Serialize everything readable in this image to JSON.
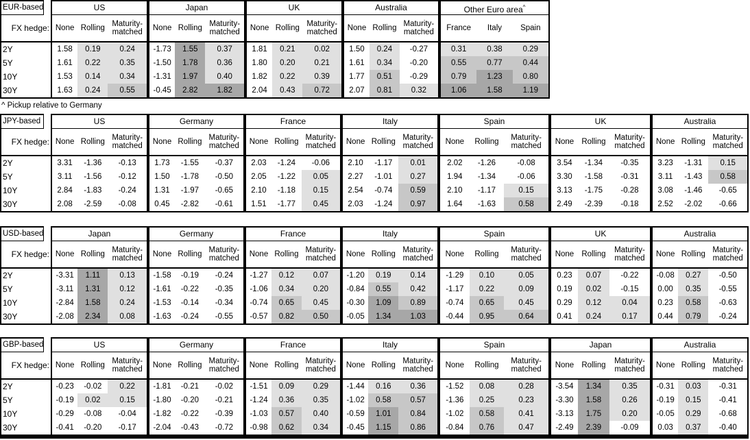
{
  "shade_colors": {
    "light": "#e0e0e0",
    "medium": "#c7c7c7",
    "dark": "#a7a7a7"
  },
  "tables": [
    {
      "label": "EUR-based",
      "fx_hedge_label": "FX hedge:",
      "row_labels": [
        "2Y",
        "5Y",
        "10Y",
        "30Y"
      ],
      "footnote": "^ Pickup relative to Germany",
      "groups": [
        {
          "name": "US",
          "columns": [
            "None",
            "Rolling",
            "Maturity-matched"
          ],
          "rows": [
            [
              "1.58",
              "0.19",
              "0.24"
            ],
            [
              "1.61",
              "0.22",
              "0.35"
            ],
            [
              "1.53",
              "0.14",
              "0.34"
            ],
            [
              "1.63",
              "0.24",
              "0.55"
            ]
          ]
        },
        {
          "name": "Japan",
          "columns": [
            "None",
            "Rolling",
            "Maturity-matched"
          ],
          "rows": [
            [
              "-1.73",
              "1.55",
              "0.37"
            ],
            [
              "-1.50",
              "1.78",
              "0.36"
            ],
            [
              "-1.31",
              "1.97",
              "0.40"
            ],
            [
              "-0.45",
              "2.82",
              "1.82"
            ]
          ]
        },
        {
          "name": "UK",
          "columns": [
            "None",
            "Rolling",
            "Maturity-matched"
          ],
          "rows": [
            [
              "1.81",
              "0.21",
              "0.02"
            ],
            [
              "1.80",
              "0.20",
              "0.21"
            ],
            [
              "1.82",
              "0.22",
              "0.39"
            ],
            [
              "2.04",
              "0.43",
              "0.72"
            ]
          ]
        },
        {
          "name": "Australia",
          "columns": [
            "None",
            "Rolling",
            "Maturity-matched"
          ],
          "rows": [
            [
              "1.50",
              "0.24",
              "-0.27"
            ],
            [
              "1.61",
              "0.34",
              "-0.20"
            ],
            [
              "1.77",
              "0.51",
              "-0.29"
            ],
            [
              "2.07",
              "0.81",
              "0.32"
            ]
          ]
        },
        {
          "name": "Other Euro area",
          "name_superscript": "^",
          "all_columns_shaded": true,
          "columns": [
            "France",
            "Italy",
            "Spain"
          ],
          "rows": [
            [
              "0.31",
              "0.38",
              "0.29"
            ],
            [
              "0.55",
              "0.77",
              "0.44"
            ],
            [
              "0.79",
              "1.23",
              "0.80"
            ],
            [
              "1.06",
              "1.58",
              "1.19"
            ]
          ]
        }
      ]
    },
    {
      "label": "JPY-based",
      "fx_hedge_label": "FX hedge:",
      "row_labels": [
        "2Y",
        "5Y",
        "10Y",
        "30Y"
      ],
      "groups": [
        {
          "name": "US",
          "columns": [
            "None",
            "Rolling",
            "Maturity-matched"
          ],
          "rows": [
            [
              "3.31",
              "-1.36",
              "-0.13"
            ],
            [
              "3.11",
              "-1.56",
              "-0.12"
            ],
            [
              "2.84",
              "-1.83",
              "-0.24"
            ],
            [
              "2.08",
              "-2.59",
              "-0.08"
            ]
          ]
        },
        {
          "name": "Germany",
          "columns": [
            "None",
            "Rolling",
            "Maturity-matched"
          ],
          "rows": [
            [
              "1.73",
              "-1.55",
              "-0.37"
            ],
            [
              "1.50",
              "-1.78",
              "-0.50"
            ],
            [
              "1.31",
              "-1.97",
              "-0.65"
            ],
            [
              "0.45",
              "-2.82",
              "-0.61"
            ]
          ]
        },
        {
          "name": "France",
          "columns": [
            "None",
            "Rolling",
            "Maturity-matched"
          ],
          "rows": [
            [
              "2.03",
              "-1.24",
              "-0.06"
            ],
            [
              "2.05",
              "-1.22",
              "0.05"
            ],
            [
              "2.10",
              "-1.18",
              "0.15"
            ],
            [
              "1.51",
              "-1.77",
              "0.45"
            ]
          ]
        },
        {
          "name": "Italy",
          "columns": [
            "None",
            "Rolling",
            "Maturity-matched"
          ],
          "rows": [
            [
              "2.10",
              "-1.17",
              "0.01"
            ],
            [
              "2.27",
              "-1.01",
              "0.27"
            ],
            [
              "2.54",
              "-0.74",
              "0.59"
            ],
            [
              "2.03",
              "-1.24",
              "0.97"
            ]
          ]
        },
        {
          "name": "Spain",
          "columns": [
            "None",
            "Rolling",
            "Maturity-matched"
          ],
          "rows": [
            [
              "2.02",
              "-1.26",
              "-0.08"
            ],
            [
              "1.94",
              "-1.34",
              "-0.06"
            ],
            [
              "2.10",
              "-1.17",
              "0.15"
            ],
            [
              "1.64",
              "-1.63",
              "0.58"
            ]
          ]
        },
        {
          "name": "UK",
          "columns": [
            "None",
            "Rolling",
            "Maturity-matched"
          ],
          "rows": [
            [
              "3.54",
              "-1.34",
              "-0.35"
            ],
            [
              "3.30",
              "-1.58",
              "-0.31"
            ],
            [
              "3.13",
              "-1.75",
              "-0.28"
            ],
            [
              "2.49",
              "-2.39",
              "-0.18"
            ]
          ]
        },
        {
          "name": "Australia",
          "columns": [
            "None",
            "Rolling",
            "Maturity-matched"
          ],
          "rows": [
            [
              "3.23",
              "-1.31",
              "0.15"
            ],
            [
              "3.11",
              "-1.43",
              "0.58"
            ],
            [
              "3.08",
              "-1.46",
              "-0.65"
            ],
            [
              "2.52",
              "-2.02",
              "-0.66"
            ]
          ]
        }
      ]
    },
    {
      "label": "USD-based",
      "fx_hedge_label": "FX hedge:",
      "row_labels": [
        "2Y",
        "5Y",
        "10Y",
        "30Y"
      ],
      "groups": [
        {
          "name": "Japan",
          "columns": [
            "None",
            "Rolling",
            "Maturity-matched"
          ],
          "rows": [
            [
              "-3.31",
              "1.11",
              "0.13"
            ],
            [
              "-3.11",
              "1.31",
              "0.12"
            ],
            [
              "-2.84",
              "1.58",
              "0.24"
            ],
            [
              "-2.08",
              "2.34",
              "0.08"
            ]
          ]
        },
        {
          "name": "Germany",
          "columns": [
            "None",
            "Rolling",
            "Maturity-matched"
          ],
          "rows": [
            [
              "-1.58",
              "-0.19",
              "-0.24"
            ],
            [
              "-1.61",
              "-0.22",
              "-0.35"
            ],
            [
              "-1.53",
              "-0.14",
              "-0.34"
            ],
            [
              "-1.63",
              "-0.24",
              "-0.55"
            ]
          ]
        },
        {
          "name": "France",
          "columns": [
            "None",
            "Rolling",
            "Maturity-matched"
          ],
          "rows": [
            [
              "-1.27",
              "0.12",
              "0.07"
            ],
            [
              "-1.06",
              "0.34",
              "0.20"
            ],
            [
              "-0.74",
              "0.65",
              "0.45"
            ],
            [
              "-0.57",
              "0.82",
              "0.50"
            ]
          ]
        },
        {
          "name": "Italy",
          "columns": [
            "None",
            "Rolling",
            "Maturity-matched"
          ],
          "rows": [
            [
              "-1.20",
              "0.19",
              "0.14"
            ],
            [
              "-0.84",
              "0.55",
              "0.42"
            ],
            [
              "-0.30",
              "1.09",
              "0.89"
            ],
            [
              "-0.05",
              "1.34",
              "1.03"
            ]
          ]
        },
        {
          "name": "Spain",
          "columns": [
            "None",
            "Rolling",
            "Maturity-matched"
          ],
          "rows": [
            [
              "-1.29",
              "0.10",
              "0.05"
            ],
            [
              "-1.17",
              "0.22",
              "0.09"
            ],
            [
              "-0.74",
              "0.65",
              "0.45"
            ],
            [
              "-0.44",
              "0.95",
              "0.64"
            ]
          ]
        },
        {
          "name": "UK",
          "columns": [
            "None",
            "Rolling",
            "Maturity-matched"
          ],
          "rows": [
            [
              "0.23",
              "0.07",
              "-0.22"
            ],
            [
              "0.19",
              "0.02",
              "-0.15"
            ],
            [
              "0.29",
              "0.12",
              "0.04"
            ],
            [
              "0.41",
              "0.24",
              "0.17"
            ]
          ]
        },
        {
          "name": "Australia",
          "columns": [
            "None",
            "Rolling",
            "Maturity-matched"
          ],
          "rows": [
            [
              "-0.08",
              "0.27",
              "-0.50"
            ],
            [
              "0.00",
              "0.35",
              "-0.55"
            ],
            [
              "0.23",
              "0.58",
              "-0.63"
            ],
            [
              "0.44",
              "0.79",
              "-0.24"
            ]
          ]
        }
      ]
    },
    {
      "label": "GBP-based",
      "fx_hedge_label": "FX hedge:",
      "row_labels": [
        "2Y",
        "5Y",
        "10Y",
        "30Y"
      ],
      "groups": [
        {
          "name": "US",
          "columns": [
            "None",
            "Rolling",
            "Maturity-matched"
          ],
          "rows": [
            [
              "-0.23",
              "-0.02",
              "0.22"
            ],
            [
              "-0.19",
              "0.02",
              "0.15"
            ],
            [
              "-0.29",
              "-0.08",
              "-0.04"
            ],
            [
              "-0.41",
              "-0.20",
              "-0.17"
            ]
          ]
        },
        {
          "name": "Germany",
          "columns": [
            "None",
            "Rolling",
            "Maturity-matched"
          ],
          "rows": [
            [
              "-1.81",
              "-0.21",
              "-0.02"
            ],
            [
              "-1.80",
              "-0.20",
              "-0.21"
            ],
            [
              "-1.82",
              "-0.22",
              "-0.39"
            ],
            [
              "-2.04",
              "-0.43",
              "-0.72"
            ]
          ]
        },
        {
          "name": "France",
          "columns": [
            "None",
            "Rolling",
            "Maturity-matched"
          ],
          "rows": [
            [
              "-1.51",
              "0.09",
              "0.29"
            ],
            [
              "-1.24",
              "0.36",
              "0.35"
            ],
            [
              "-1.03",
              "0.57",
              "0.40"
            ],
            [
              "-0.98",
              "0.62",
              "0.34"
            ]
          ]
        },
        {
          "name": "Italy",
          "columns": [
            "None",
            "Rolling",
            "Maturity-matched"
          ],
          "rows": [
            [
              "-1.44",
              "0.16",
              "0.36"
            ],
            [
              "-1.02",
              "0.58",
              "0.57"
            ],
            [
              "-0.59",
              "1.01",
              "0.84"
            ],
            [
              "-0.45",
              "1.15",
              "0.86"
            ]
          ]
        },
        {
          "name": "Spain",
          "columns": [
            "None",
            "Rolling",
            "Maturity-matched"
          ],
          "rows": [
            [
              "-1.52",
              "0.08",
              "0.28"
            ],
            [
              "-1.36",
              "0.25",
              "0.23"
            ],
            [
              "-1.02",
              "0.58",
              "0.41"
            ],
            [
              "-0.84",
              "0.76",
              "0.47"
            ]
          ]
        },
        {
          "name": "Japan",
          "columns": [
            "None",
            "Rolling",
            "Maturity-matched"
          ],
          "rows": [
            [
              "-3.54",
              "1.34",
              "0.35"
            ],
            [
              "-3.30",
              "1.58",
              "0.26"
            ],
            [
              "-3.13",
              "1.75",
              "0.20"
            ],
            [
              "-2.49",
              "2.39",
              "-0.09"
            ]
          ]
        },
        {
          "name": "Australia",
          "columns": [
            "None",
            "Rolling",
            "Maturity-matched"
          ],
          "rows": [
            [
              "-0.31",
              "0.03",
              "-0.31"
            ],
            [
              "-0.19",
              "0.15",
              "-0.41"
            ],
            [
              "-0.05",
              "0.29",
              "-0.68"
            ],
            [
              "0.03",
              "0.37",
              "-0.40"
            ]
          ]
        }
      ]
    }
  ]
}
